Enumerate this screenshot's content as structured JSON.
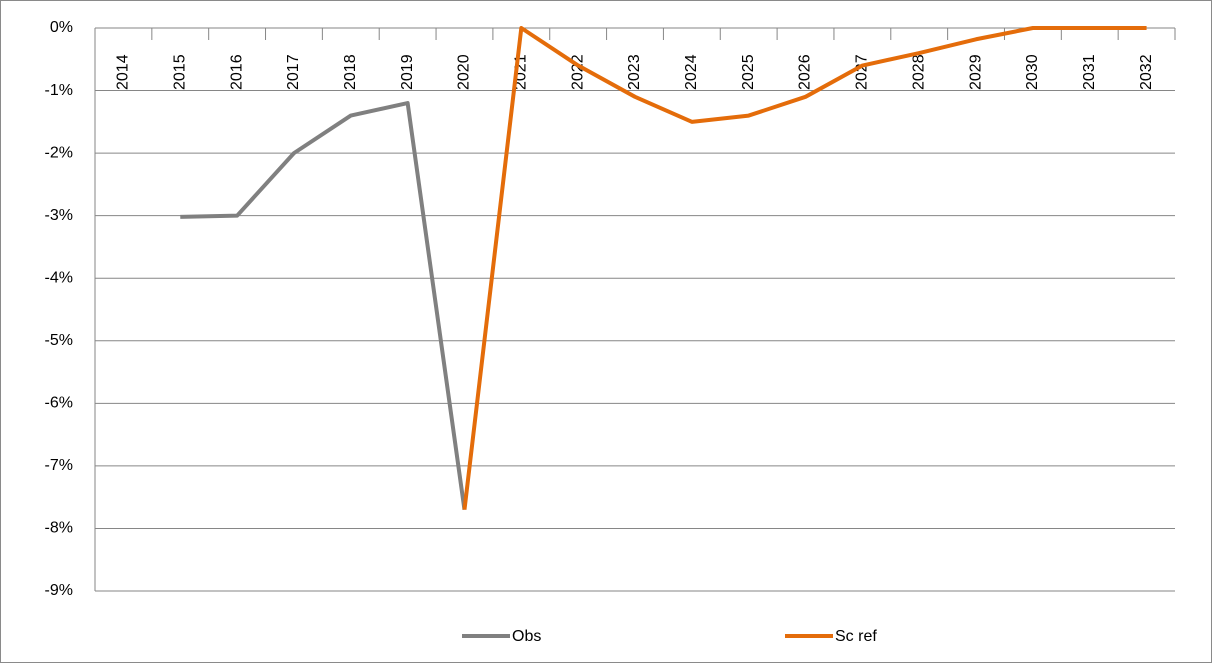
{
  "chart_data": {
    "type": "line",
    "categories": [
      "2014",
      "2015",
      "2016",
      "2017",
      "2018",
      "2019",
      "2020",
      "2021",
      "2022",
      "2023",
      "2024",
      "2025",
      "2026",
      "2027",
      "2028",
      "2029",
      "2030",
      "2031",
      "2032"
    ],
    "series": [
      {
        "name": "Obs",
        "color": "#808080",
        "values": [
          null,
          -3.02,
          -3.0,
          -2.0,
          -1.4,
          -1.2,
          -7.7,
          null,
          null,
          null,
          null,
          null,
          null,
          null,
          null,
          null,
          null,
          null,
          null
        ]
      },
      {
        "name": "Sc ref",
        "color": "#e46c0a",
        "values": [
          null,
          null,
          null,
          null,
          null,
          null,
          -7.7,
          0,
          -0.6,
          -1.1,
          -1.5,
          -1.4,
          -1.1,
          -0.6,
          -0.4,
          -0.18,
          0,
          0,
          0
        ]
      }
    ],
    "ylim": [
      -9,
      0
    ],
    "yticks": [
      {
        "value": 0,
        "label": "0%"
      },
      {
        "value": -1,
        "label": "-1%"
      },
      {
        "value": -2,
        "label": "-2%"
      },
      {
        "value": -3,
        "label": "-3%"
      },
      {
        "value": -4,
        "label": "-4%"
      },
      {
        "value": -5,
        "label": "-5%"
      },
      {
        "value": -6,
        "label": "-6%"
      },
      {
        "value": -7,
        "label": "-7%"
      },
      {
        "value": -8,
        "label": "-8%"
      },
      {
        "value": -9,
        "label": "-9%"
      }
    ],
    "grid": true,
    "legend": "bottom"
  }
}
